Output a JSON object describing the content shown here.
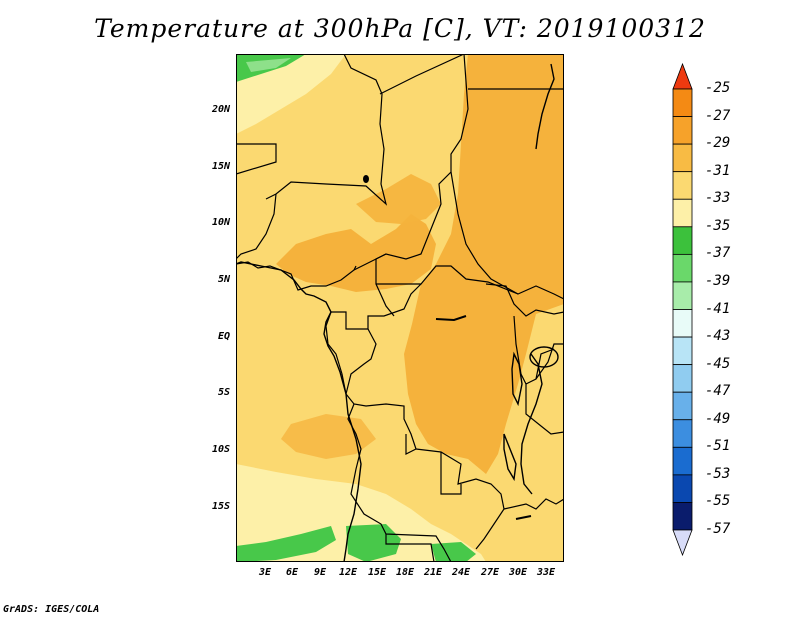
{
  "title": "Temperature at 300hPa [C], VT: 2019100312",
  "credit": "GrADS: IGES/COLA",
  "map": {
    "lat_labels": [
      "20N",
      "15N",
      "10N",
      "5N",
      "EQ",
      "5S",
      "10S",
      "15S"
    ],
    "lon_labels": [
      "3E",
      "6E",
      "9E",
      "12E",
      "15E",
      "18E",
      "21E",
      "24E",
      "27E",
      "30E",
      "33E"
    ],
    "region_colors": {
      "warm": "#f5b23c",
      "mid": "#fbd971",
      "cool": "#fdf0a8",
      "green": "#48c84a",
      "light_green": "#8ee08a"
    }
  },
  "colorbar": {
    "labels": [
      "-25",
      "-27",
      "-29",
      "-31",
      "-33",
      "-35",
      "-37",
      "-39",
      "-41",
      "-43",
      "-45",
      "-47",
      "-49",
      "-51",
      "-53",
      "-55",
      "-57"
    ],
    "colors": [
      "#f05a10",
      "#f48a14",
      "#f6a22a",
      "#f8bb44",
      "#fbd971",
      "#fdf0a8",
      "#3cc13c",
      "#6ad86a",
      "#a8ecaa",
      "#e8fbf8",
      "#b8e4f6",
      "#90ccf0",
      "#68b0ea",
      "#3c8ee0",
      "#1a6cd0",
      "#0a48b0",
      "#0a1c6c"
    ],
    "top_arrow_color": "#ee3a10",
    "bottom_arrow_color": "#d8dcf8"
  }
}
